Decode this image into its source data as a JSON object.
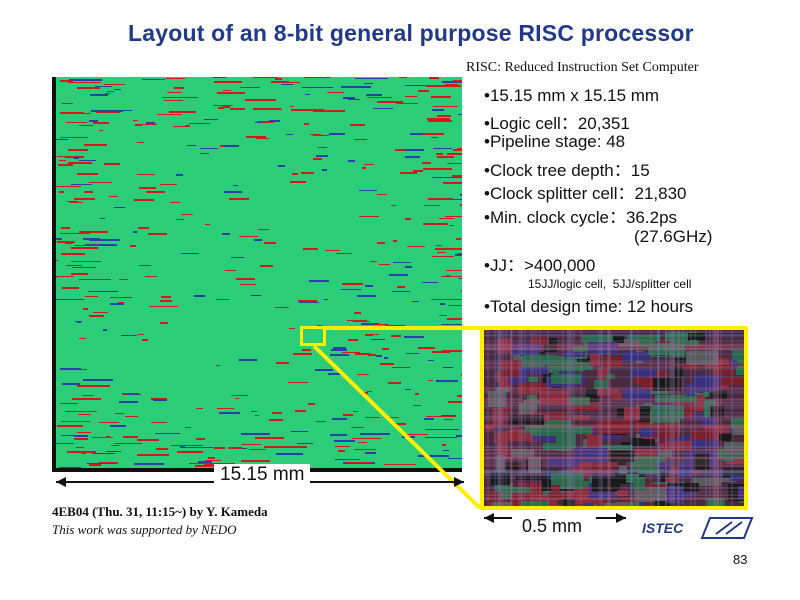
{
  "title": "Layout of an 8-bit general purpose RISC processor",
  "subtitle": "RISC: Reduced Instruction Set Computer",
  "bullets": [
    "•15.15 mm x 15.15 mm",
    "•Logic cell：20,351",
    "•Pipeline stage: 48",
    "•Clock tree depth：15",
    "•Clock splitter cell：21,830",
    "•Min. clock cycle：36.2ps",
    "(27.6GHz)",
    "•JJ：>400,000",
    "15JJ/logic cell,  5JJ/splitter cell",
    "•Total design time: 12 hours"
  ],
  "dimensions": {
    "chip": "15.15 mm",
    "zoom": "0.5 mm"
  },
  "credits": {
    "line1": "4EB04 (Thu. 31, 11:15~) by Y. Kameda",
    "line2": "This work was supported by NEDO"
  },
  "logo": {
    "text": "ISTEC",
    "mark": "SRL"
  },
  "page_number": "83",
  "colors": {
    "title": "#1f3a8a",
    "chip_green": "#2ccd78",
    "trace_red": "#d21a1a",
    "trace_blue": "#2c3fa8",
    "highlight_yellow": "#ffee00"
  }
}
